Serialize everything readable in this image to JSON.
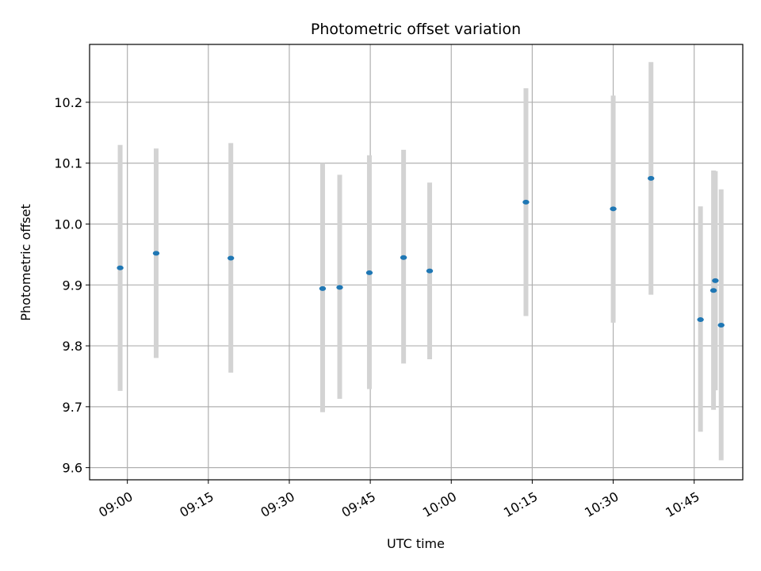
{
  "chart_data": {
    "type": "scatter",
    "title": "Photometric offset variation",
    "xlabel": "UTC time",
    "ylabel": "Photometric offset",
    "x_axis_type": "time",
    "xlim": [
      "08:53",
      "10:54"
    ],
    "ylim": [
      9.58,
      10.295
    ],
    "xticks": [
      "09:00",
      "09:15",
      "09:30",
      "09:45",
      "10:00",
      "10:15",
      "10:30",
      "10:45"
    ],
    "yticks": [
      9.6,
      9.7,
      9.8,
      9.9,
      10.0,
      10.1,
      10.2
    ],
    "ytick_labels": [
      "9.6",
      "9.7",
      "9.8",
      "9.9",
      "10.0",
      "10.1",
      "10.2"
    ],
    "grid": true,
    "colors": {
      "points": "#1f77b4",
      "errorbars": "#d3d3d3",
      "grid": "#b0b0b0"
    },
    "points": [
      {
        "x": "08:58:40",
        "y": 9.928,
        "ylow": 9.726,
        "yhigh": 10.13
      },
      {
        "x": "09:05:20",
        "y": 9.952,
        "ylow": 9.78,
        "yhigh": 10.124
      },
      {
        "x": "09:19:10",
        "y": 9.944,
        "ylow": 9.756,
        "yhigh": 10.133
      },
      {
        "x": "09:36:10",
        "y": 9.894,
        "ylow": 9.691,
        "yhigh": 10.1
      },
      {
        "x": "09:39:20",
        "y": 9.896,
        "ylow": 9.713,
        "yhigh": 10.081
      },
      {
        "x": "09:44:50",
        "y": 9.92,
        "ylow": 9.729,
        "yhigh": 10.113
      },
      {
        "x": "09:51:10",
        "y": 9.945,
        "ylow": 9.771,
        "yhigh": 10.122
      },
      {
        "x": "09:56:00",
        "y": 9.923,
        "ylow": 9.778,
        "yhigh": 10.068
      },
      {
        "x": "10:13:50",
        "y": 10.036,
        "ylow": 9.849,
        "yhigh": 10.223
      },
      {
        "x": "10:30:00",
        "y": 10.025,
        "ylow": 9.838,
        "yhigh": 10.211
      },
      {
        "x": "10:37:00",
        "y": 10.075,
        "ylow": 9.884,
        "yhigh": 10.266
      },
      {
        "x": "10:46:10",
        "y": 9.843,
        "ylow": 9.659,
        "yhigh": 10.029
      },
      {
        "x": "10:48:35",
        "y": 9.891,
        "ylow": 9.695,
        "yhigh": 10.088
      },
      {
        "x": "10:48:55",
        "y": 9.907,
        "ylow": 9.727,
        "yhigh": 10.087
      },
      {
        "x": "10:50:00",
        "y": 9.834,
        "ylow": 9.612,
        "yhigh": 10.057
      }
    ]
  }
}
